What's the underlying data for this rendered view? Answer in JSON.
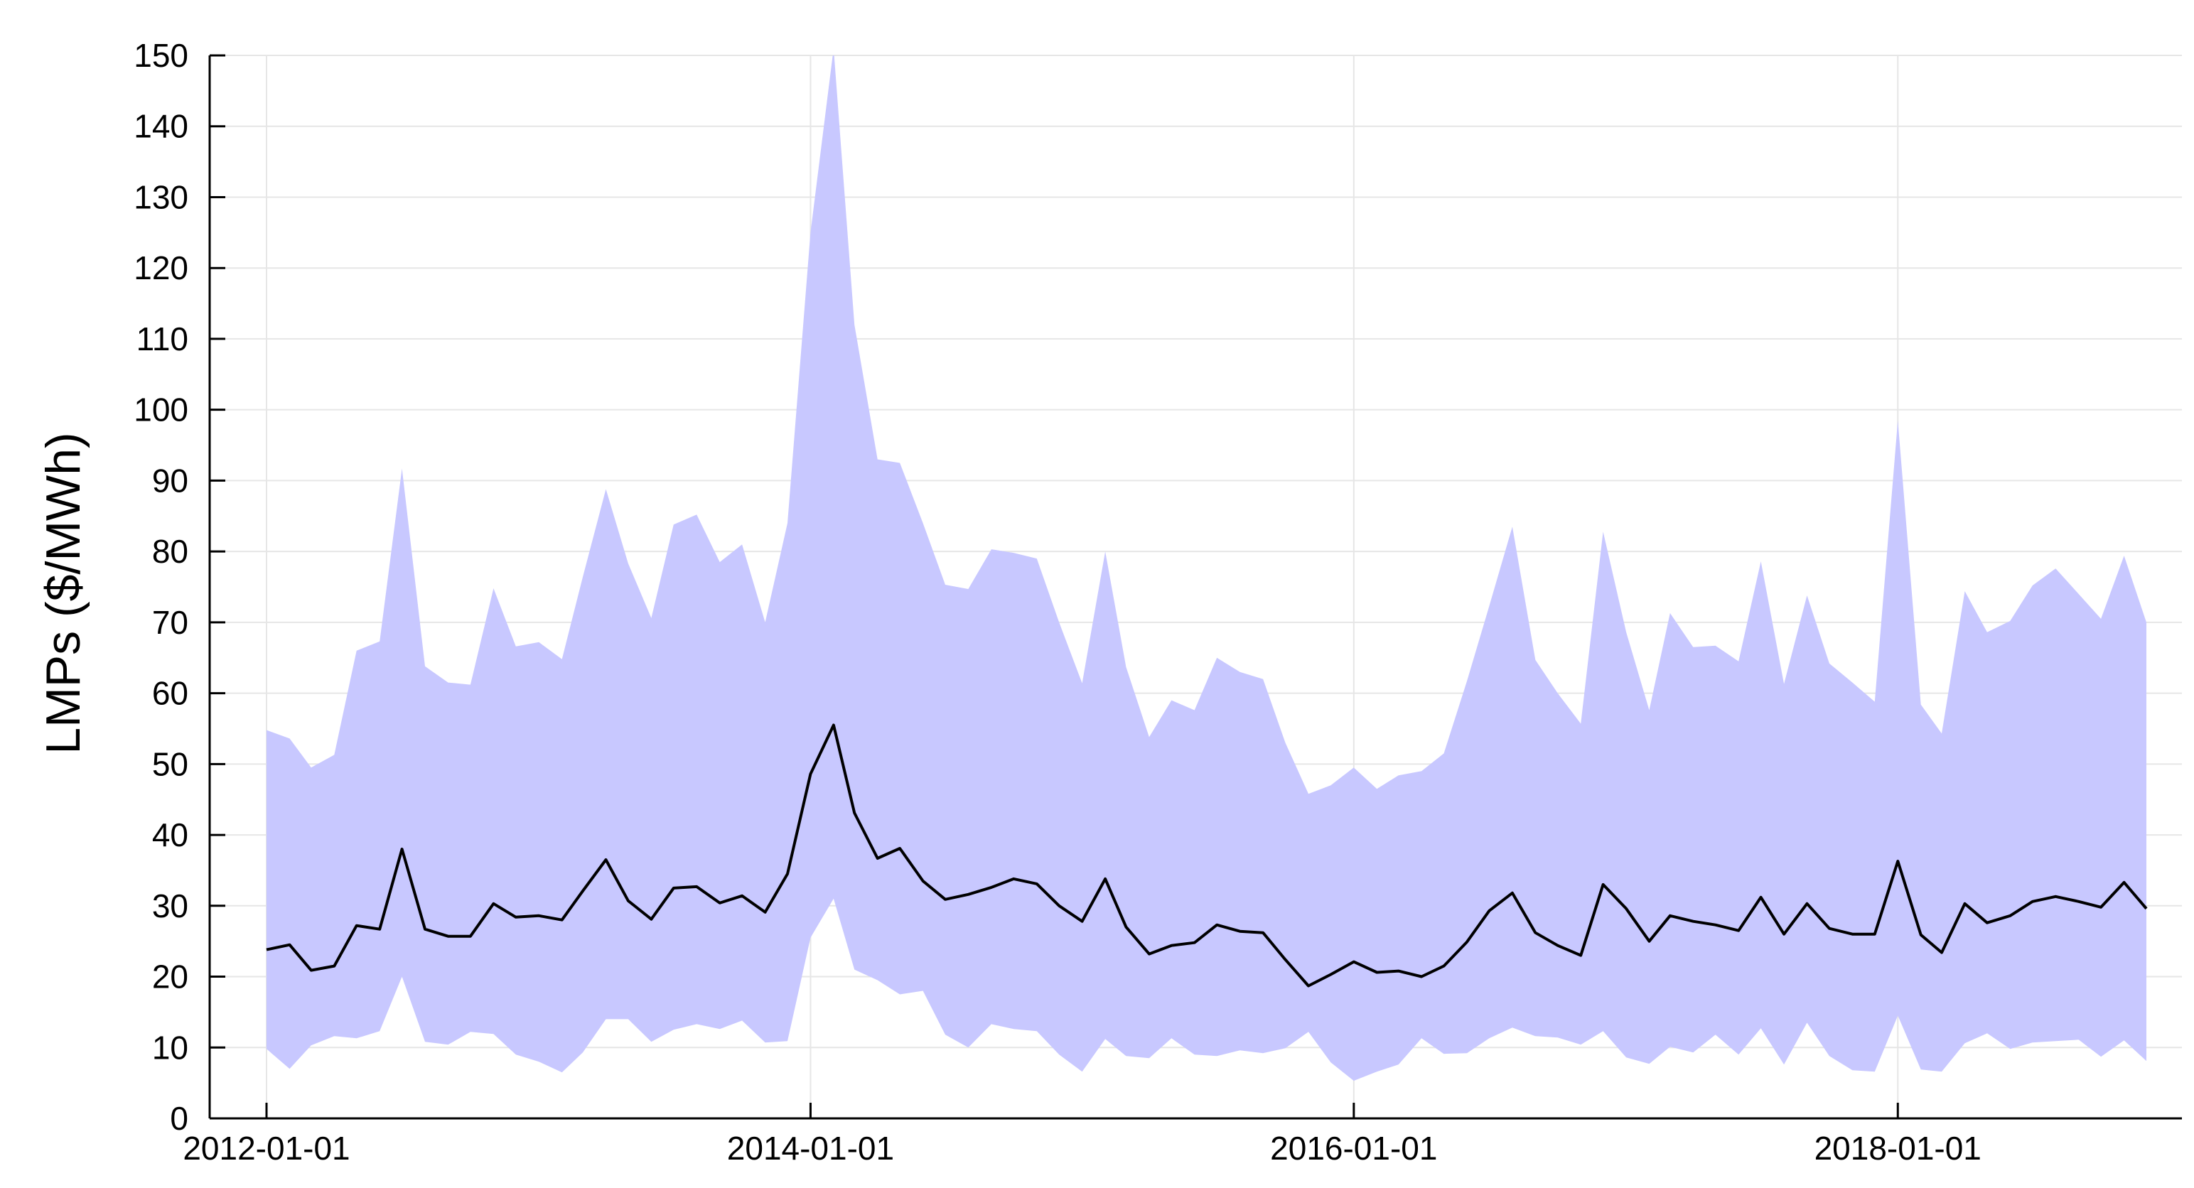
{
  "chart_data": {
    "type": "area",
    "ylabel": "LMPs ($/MWh)",
    "xlabel": "",
    "ylim": [
      0,
      150
    ],
    "xlim": [
      "2012-01-01",
      "2018-12-01"
    ],
    "yticks": [
      0,
      10,
      20,
      30,
      40,
      50,
      60,
      70,
      80,
      90,
      100,
      110,
      120,
      130,
      140,
      150
    ],
    "xticks": [
      "2012-01-01",
      "2014-01-01",
      "2016-01-01",
      "2018-01-01"
    ],
    "grid": true,
    "colors": {
      "band": "#c8c8ff",
      "line": "#000000",
      "grid": "#e6e6e6",
      "axis": "#000000"
    },
    "x": [
      "2012-01-01",
      "2012-02-01",
      "2012-03-01",
      "2012-04-01",
      "2012-05-01",
      "2012-06-01",
      "2012-07-01",
      "2012-08-01",
      "2012-09-01",
      "2012-10-01",
      "2012-11-01",
      "2012-12-01",
      "2013-01-01",
      "2013-02-01",
      "2013-03-01",
      "2013-04-01",
      "2013-05-01",
      "2013-06-01",
      "2013-07-01",
      "2013-08-01",
      "2013-09-01",
      "2013-10-01",
      "2013-11-01",
      "2013-12-01",
      "2014-01-01",
      "2014-02-01",
      "2014-03-01",
      "2014-04-01",
      "2014-05-01",
      "2014-06-01",
      "2014-07-01",
      "2014-08-01",
      "2014-09-01",
      "2014-10-01",
      "2014-11-01",
      "2014-12-01",
      "2015-01-01",
      "2015-02-01",
      "2015-03-01",
      "2015-04-01",
      "2015-05-01",
      "2015-06-01",
      "2015-07-01",
      "2015-08-01",
      "2015-09-01",
      "2015-10-01",
      "2015-11-01",
      "2015-12-01",
      "2016-01-01",
      "2016-02-01",
      "2016-03-01",
      "2016-04-01",
      "2016-05-01",
      "2016-06-01",
      "2016-07-01",
      "2016-08-01",
      "2016-09-01",
      "2016-10-01",
      "2016-11-01",
      "2016-12-01",
      "2017-01-01",
      "2017-02-01",
      "2017-03-01",
      "2017-04-01",
      "2017-05-01",
      "2017-06-01",
      "2017-07-01",
      "2017-08-01",
      "2017-09-01",
      "2017-10-01",
      "2017-11-01",
      "2017-12-01",
      "2018-01-01",
      "2018-02-01",
      "2018-03-01",
      "2018-04-01",
      "2018-05-01",
      "2018-06-01",
      "2018-07-01",
      "2018-08-01",
      "2018-09-01",
      "2018-10-01",
      "2018-11-01",
      "2018-12-01"
    ],
    "series": [
      {
        "role": "mean",
        "values": [
          23.8,
          24.5,
          20.9,
          21.5,
          27.2,
          26.7,
          38.0,
          26.7,
          25.7,
          25.7,
          30.3,
          28.4,
          28.6,
          28.0,
          32.1,
          36.5,
          30.7,
          28.1,
          32.5,
          32.7,
          30.4,
          31.4,
          29.1,
          34.5,
          48.6,
          55.5,
          43.1,
          36.7,
          38.1,
          33.5,
          30.9,
          31.6,
          32.6,
          33.8,
          33.1,
          30.0,
          27.8,
          33.8,
          27.0,
          23.2,
          24.4,
          24.8,
          27.3,
          26.4,
          26.2,
          22.4,
          18.7,
          20.3,
          22.1,
          20.6,
          20.8,
          20.0,
          21.5,
          24.9,
          29.3,
          31.8,
          26.2,
          24.4,
          23.0,
          33.0,
          29.6,
          25.0,
          28.6,
          27.8,
          27.3,
          26.5,
          31.2,
          26.0,
          30.3,
          26.8,
          26.0,
          26.0,
          36.3,
          25.9,
          23.4,
          30.3,
          27.6,
          28.6,
          30.6,
          31.3,
          30.6,
          29.8,
          33.3,
          29.6
        ]
      },
      {
        "role": "band-upper",
        "values": [
          54.8,
          53.6,
          49.5,
          51.3,
          66.0,
          67.3,
          91.7,
          63.8,
          61.5,
          61.2,
          74.8,
          66.6,
          67.2,
          64.8,
          76.4,
          88.8,
          78.3,
          70.6,
          83.8,
          85.2,
          78.5,
          81.0,
          70.0,
          84.0,
          125.0,
          151.0,
          112.0,
          93.0,
          92.5,
          84.0,
          75.3,
          74.7,
          80.3,
          79.8,
          79.0,
          70.0,
          61.4,
          80.0,
          63.7,
          53.8,
          59.0,
          57.6,
          65.0,
          63.0,
          62.0,
          53.0,
          45.8,
          47.0,
          49.5,
          46.5,
          48.4,
          49.0,
          51.5,
          61.7,
          72.3,
          83.5,
          64.7,
          60.0,
          55.7,
          82.8,
          68.6,
          57.6,
          71.3,
          66.5,
          66.7,
          64.5,
          78.6,
          61.3,
          73.8,
          64.2,
          61.5,
          58.8,
          98.5,
          58.4,
          54.3,
          74.4,
          68.6,
          70.2,
          75.2,
          77.6,
          74.0,
          70.5,
          79.4,
          70.0
        ]
      },
      {
        "role": "band-lower",
        "values": [
          9.8,
          7.0,
          10.3,
          11.6,
          11.3,
          12.3,
          20.0,
          10.8,
          10.4,
          12.2,
          11.9,
          9.0,
          8.0,
          6.5,
          9.3,
          14.0,
          14.0,
          10.8,
          12.5,
          13.3,
          12.6,
          13.8,
          10.7,
          10.9,
          25.5,
          31.0,
          21.0,
          19.5,
          17.5,
          18.0,
          11.8,
          10.0,
          13.3,
          12.6,
          12.3,
          9.0,
          6.6,
          11.2,
          8.8,
          8.5,
          11.3,
          9.0,
          8.8,
          9.6,
          9.2,
          9.9,
          12.2,
          7.9,
          5.3,
          6.6,
          7.6,
          11.3,
          9.1,
          9.2,
          11.3,
          12.8,
          11.6,
          11.4,
          10.4,
          12.3,
          8.6,
          7.7,
          10.1,
          9.3,
          11.8,
          9.0,
          12.7,
          7.6,
          13.5,
          8.8,
          6.8,
          6.6,
          14.5,
          6.9,
          6.6,
          10.6,
          12.0,
          9.8,
          10.7,
          10.9,
          11.1,
          8.7,
          11.0,
          8.1
        ]
      }
    ]
  }
}
